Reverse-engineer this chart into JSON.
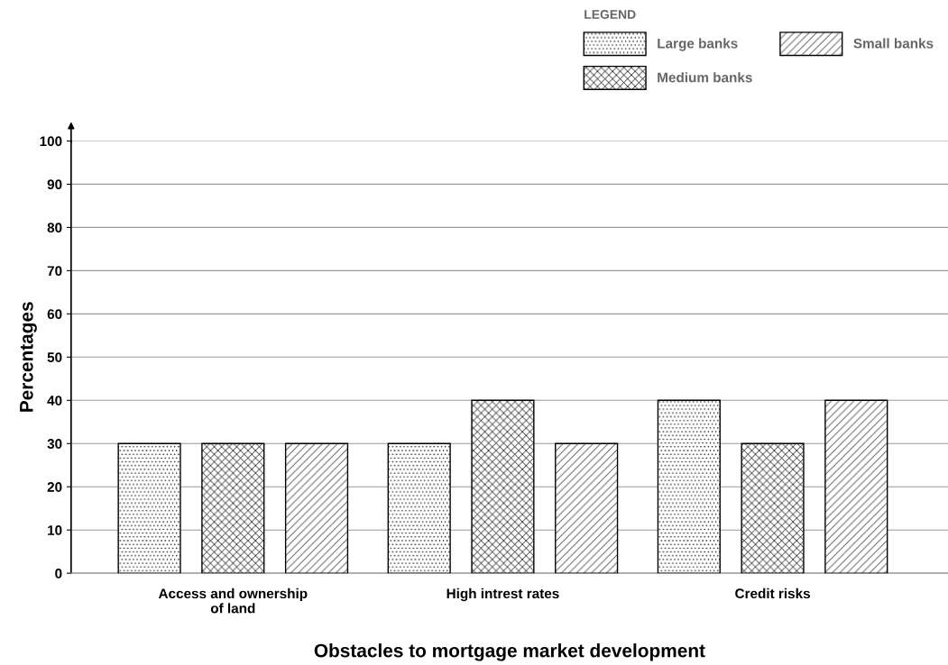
{
  "chart_data": {
    "type": "bar",
    "xlabel": "Obstacles to mortgage market development",
    "ylabel": "Percentages",
    "legend_title": "LEGEND",
    "categories": [
      "Access and ownership\nof land",
      "High intrest rates",
      "Credit risks"
    ],
    "series": [
      {
        "name": "Large banks",
        "color": "#000000",
        "values": [
          30,
          30,
          40
        ]
      },
      {
        "name": "Medium banks",
        "color": "#000000",
        "values": [
          30,
          40,
          30
        ]
      },
      {
        "name": "Small banks",
        "color": "#000000",
        "values": [
          30,
          30,
          40
        ]
      }
    ],
    "ylim": [
      0,
      100
    ],
    "yticks": [
      0,
      10,
      20,
      30,
      40,
      50,
      60,
      70,
      80,
      90,
      100
    ],
    "grid": "y",
    "legend": "top right"
  }
}
